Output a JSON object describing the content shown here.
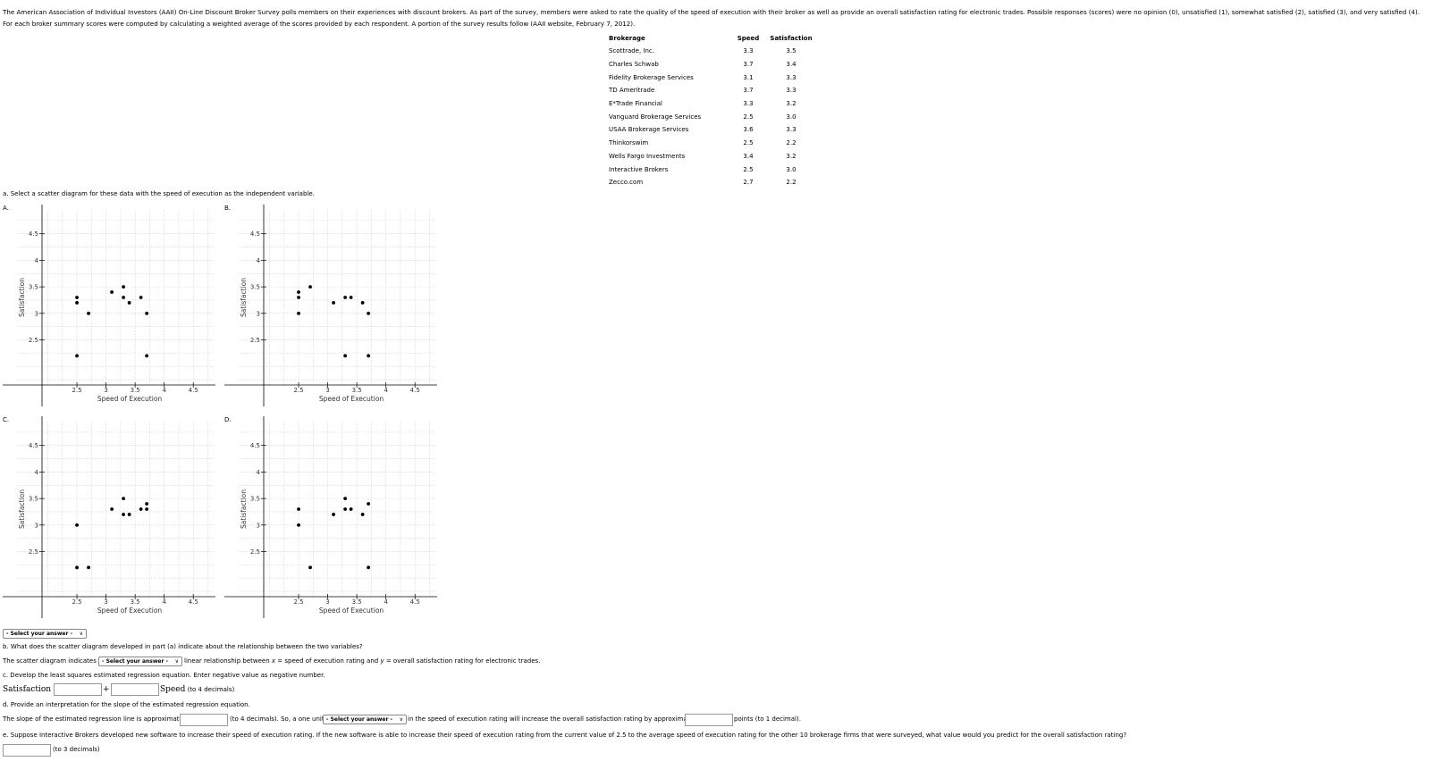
{
  "intro": "The American Association of Individual Investors (AAII) On-Line Discount Broker Survey polls members on their experiences with discount brokers. As part of the survey, members were asked to rate the quality of the speed of execution with their broker as well as provide an overall satisfaction rating for electronic trades. Possible responses (scores) were no opinion (0), unsatisfied (1), somewhat satisfied (2), satisfied (3), and very satisfied (4). For each broker summary scores were computed by calculating a weighted average of the scores provided by each respondent. A portion of the survey results follow (AAII website, February 7, 2012).",
  "table": {
    "headers": {
      "brokerage": "Brokerage",
      "speed": "Speed",
      "satisfaction": "Satisfaction"
    },
    "rows": [
      {
        "brokerage": "Scottrade, Inc.",
        "speed": "3.3",
        "satisfaction": "3.5"
      },
      {
        "brokerage": "Charles Schwab",
        "speed": "3.7",
        "satisfaction": "3.4"
      },
      {
        "brokerage": "Fidelity Brokerage Services",
        "speed": "3.1",
        "satisfaction": "3.3"
      },
      {
        "brokerage": "TD Ameritrade",
        "speed": "3.7",
        "satisfaction": "3.3"
      },
      {
        "brokerage": "E*Trade Financial",
        "speed": "3.3",
        "satisfaction": "3.2"
      },
      {
        "brokerage": "Vanguard Brokerage Services",
        "speed": "2.5",
        "satisfaction": "3.0"
      },
      {
        "brokerage": "USAA Brokerage Services",
        "speed": "3.6",
        "satisfaction": "3.3"
      },
      {
        "brokerage": "Thinkorswim",
        "speed": "2.5",
        "satisfaction": "2.2"
      },
      {
        "brokerage": "Wells Fargo Investments",
        "speed": "3.4",
        "satisfaction": "3.2"
      },
      {
        "brokerage": "Interactive Brokers",
        "speed": "2.5",
        "satisfaction": "3.0"
      },
      {
        "brokerage": "Zecco.com",
        "speed": "2.7",
        "satisfaction": "2.2"
      }
    ]
  },
  "part_a": {
    "question": "a. Select a scatter diagram for these data with the speed of execution as the independent variable.",
    "select_label": "- Select your answer -"
  },
  "plots": {
    "x_label": "Speed   of   Execution",
    "y_label": "Satisfaction",
    "x_ticks": [
      "2.5",
      "3",
      "3.5",
      "4",
      "4.5"
    ],
    "y_ticks": [
      "4.5",
      "4",
      "3.5",
      "3",
      "2.5"
    ],
    "items": [
      {
        "letter": "A.",
        "points": [
          [
            2.5,
            3.3
          ],
          [
            2.5,
            3.2
          ],
          [
            2.7,
            3.0
          ],
          [
            3.1,
            3.4
          ],
          [
            3.3,
            3.5
          ],
          [
            3.3,
            3.3
          ],
          [
            3.4,
            3.2
          ],
          [
            3.6,
            3.3
          ],
          [
            3.7,
            3.0
          ],
          [
            2.5,
            2.2
          ],
          [
            3.7,
            2.2
          ]
        ]
      },
      {
        "letter": "B.",
        "points": [
          [
            2.5,
            3.4
          ],
          [
            2.5,
            3.3
          ],
          [
            2.5,
            3.0
          ],
          [
            2.7,
            3.5
          ],
          [
            3.1,
            3.2
          ],
          [
            3.3,
            3.3
          ],
          [
            3.4,
            3.3
          ],
          [
            3.6,
            3.2
          ],
          [
            3.7,
            3.0
          ],
          [
            3.3,
            2.2
          ],
          [
            3.7,
            2.2
          ]
        ]
      },
      {
        "letter": "C.",
        "points": [
          [
            2.5,
            3.0
          ],
          [
            2.5,
            2.2
          ],
          [
            2.7,
            2.2
          ],
          [
            3.1,
            3.3
          ],
          [
            3.3,
            3.5
          ],
          [
            3.3,
            3.2
          ],
          [
            3.4,
            3.2
          ],
          [
            3.6,
            3.3
          ],
          [
            3.7,
            3.4
          ],
          [
            3.7,
            3.3
          ]
        ]
      },
      {
        "letter": "D.",
        "points": [
          [
            2.5,
            3.3
          ],
          [
            2.5,
            3.0
          ],
          [
            2.7,
            2.2
          ],
          [
            3.1,
            3.2
          ],
          [
            3.3,
            3.5
          ],
          [
            3.3,
            3.3
          ],
          [
            3.4,
            3.3
          ],
          [
            3.6,
            3.2
          ],
          [
            3.7,
            3.4
          ],
          [
            3.7,
            2.2
          ]
        ]
      }
    ]
  },
  "part_b": {
    "question": "b. What does the scatter diagram developed in part (a) indicate about the relationship between the two variables?",
    "prefix": "The scatter diagram indicates a",
    "select_label": "- Select your answer -",
    "suffix_1": "linear relationship between",
    "var_x": "x",
    "suffix_2": "= speed of execution rating and",
    "var_y": "y",
    "suffix_3": "= overall satisfaction rating for electronic trades."
  },
  "part_c": {
    "question": "c. Develop the least squares estimated regression equation. Enter negative value as negative number.",
    "lhs": "Satisfaction =",
    "plus": "+",
    "speed": "Speed",
    "decimals": "(to 4 decimals)"
  },
  "part_d": {
    "question": "d. Provide an interpretation for the slope of the estimated regression equation.",
    "prefix": "The slope of the estimated regression line is approximately",
    "decimals": "(to 4 decimals). So, a one unit",
    "select_label": "- Select your answer -",
    "middle": "in the speed of execution rating will increase the overall satisfaction rating by approximately",
    "suffix": "points (to 1 decimal)."
  },
  "part_e": {
    "question": "e. Suppose Interactive Brokers developed new software to increase their speed of execution rating. If the new software is able to increase their speed of execution rating from the current value of 2.5 to the average speed of execution rating for the other 10 brokerage firms that were surveyed, what value would you predict for the overall satisfaction rating?",
    "decimals": "(to 3 decimals)"
  }
}
